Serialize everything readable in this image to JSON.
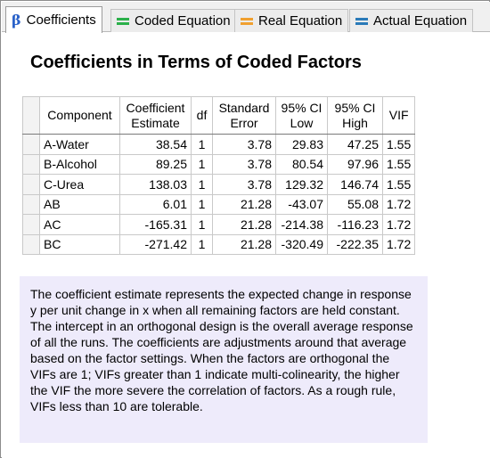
{
  "tabs": [
    {
      "label": "Coefficients",
      "icon": "beta-icon",
      "color": "#2a62c9",
      "active": true
    },
    {
      "label": "Coded Equation",
      "icon": "equals-icon",
      "color": "#2bb04a",
      "active": false
    },
    {
      "label": "Real Equation",
      "icon": "equals-icon",
      "color": "#f0a030",
      "active": false
    },
    {
      "label": "Actual Equation",
      "icon": "equals-icon",
      "color": "#2a7ab8",
      "active": false
    }
  ],
  "heading": "Coefficients in Terms of Coded Factors",
  "table": {
    "headers": {
      "component": "Component",
      "coef_l1": "Coefficient",
      "coef_l2": "Estimate",
      "df": "df",
      "se_l1": "Standard",
      "se_l2": "Error",
      "low_l1": "95% CI",
      "low_l2": "Low",
      "high_l1": "95% CI",
      "high_l2": "High",
      "vif": "VIF"
    },
    "rows": [
      {
        "component": "A-Water",
        "estimate": "38.54",
        "df": "1",
        "se": "3.78",
        "low": "29.83",
        "high": "47.25",
        "vif": "1.55"
      },
      {
        "component": "B-Alcohol",
        "estimate": "89.25",
        "df": "1",
        "se": "3.78",
        "low": "80.54",
        "high": "97.96",
        "vif": "1.55"
      },
      {
        "component": "C-Urea",
        "estimate": "138.03",
        "df": "1",
        "se": "3.78",
        "low": "129.32",
        "high": "146.74",
        "vif": "1.55"
      },
      {
        "component": "AB",
        "estimate": "6.01",
        "df": "1",
        "se": "21.28",
        "low": "-43.07",
        "high": "55.08",
        "vif": "1.72"
      },
      {
        "component": "AC",
        "estimate": "-165.31",
        "df": "1",
        "se": "21.28",
        "low": "-214.38",
        "high": "-116.23",
        "vif": "1.72"
      },
      {
        "component": "BC",
        "estimate": "-271.42",
        "df": "1",
        "se": "21.28",
        "low": "-320.49",
        "high": "-222.35",
        "vif": "1.72"
      }
    ]
  },
  "note": "The coefficient estimate represents the expected change in response y per unit change in x when all remaining factors are held constant. The intercept in an orthogonal design is the overall average response of all the runs. The coefficients are adjustments around that average based on the factor settings. When the factors are orthogonal the VIFs are 1; VIFs greater than 1 indicate multi-colinearity, the higher the VIF the more severe the correlation of factors. As a rough rule, VIFs less than 10 are tolerable."
}
